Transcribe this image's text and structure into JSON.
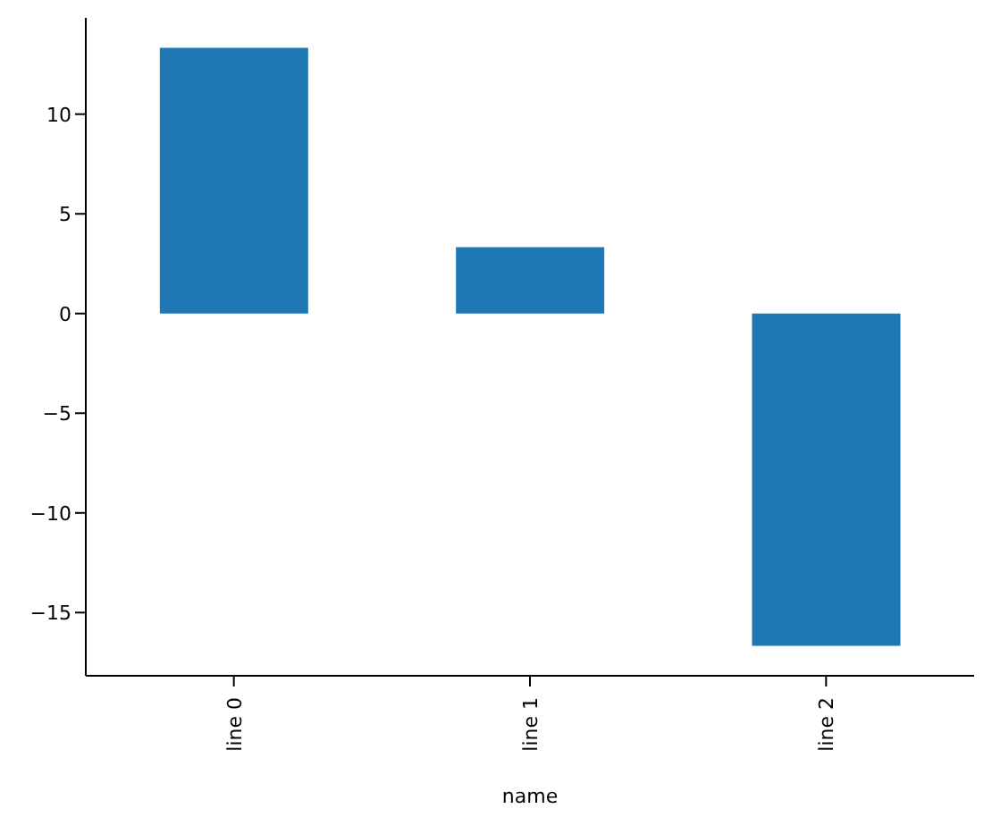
{
  "chart_data": {
    "type": "bar",
    "xlabel": "name",
    "categories": [
      "line 0",
      "line 1",
      "line 2"
    ],
    "values": [
      13.33,
      3.33,
      -16.67
    ],
    "color": "#1f77b4",
    "ylim": [
      -18.17,
      14.83
    ],
    "yticks": [
      -15,
      -10,
      -5,
      0,
      5,
      10
    ],
    "grid": false,
    "legend": false
  }
}
